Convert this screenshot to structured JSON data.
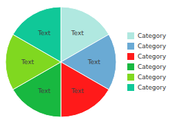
{
  "chart_data": {
    "type": "pie",
    "categories": [
      "Category",
      "Category",
      "Category",
      "Category",
      "Category",
      "Category"
    ],
    "values": [
      1,
      1,
      1,
      1,
      1,
      1
    ],
    "colors": [
      "#b0e8e0",
      "#6aaad4",
      "#ff1a1a",
      "#18b840",
      "#80d820",
      "#10c898"
    ],
    "annotations": [
      "Text",
      "Text",
      "Text",
      "Text",
      "Text",
      "Text"
    ],
    "legend": "right"
  }
}
